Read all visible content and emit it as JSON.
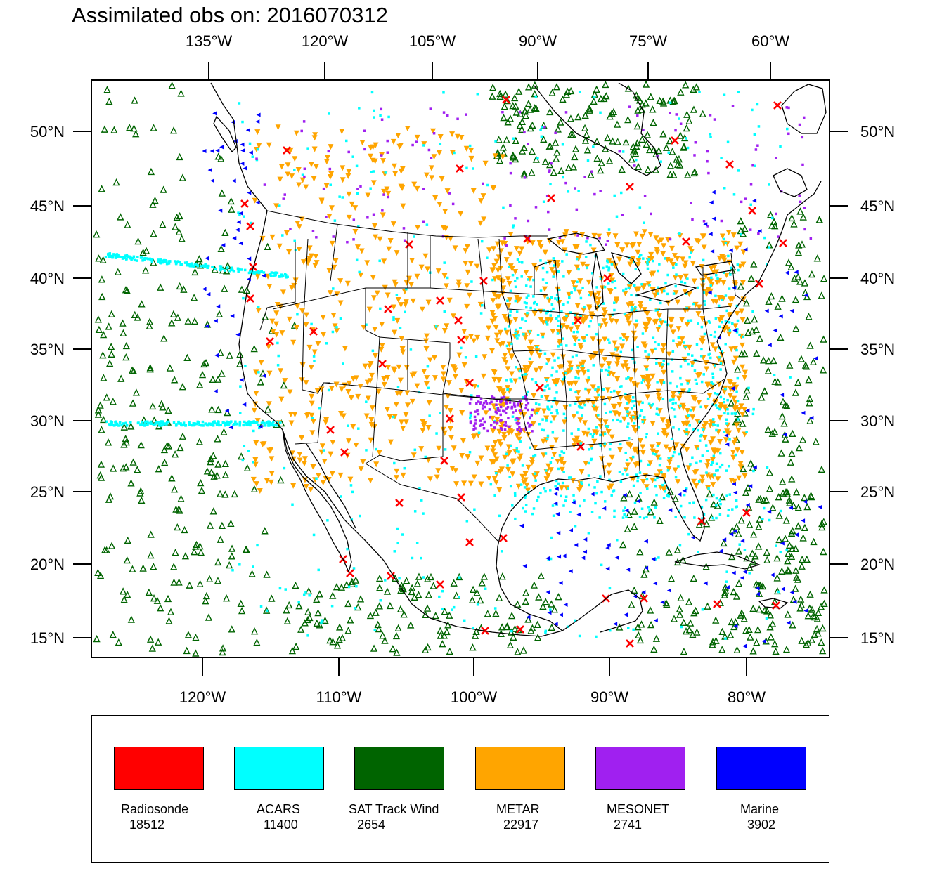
{
  "title": "Assimilated obs on: 2016070312",
  "top_lon_labels": [
    "135°W",
    "120°W",
    "105°W",
    "90°W",
    "75°W",
    "60°W"
  ],
  "bottom_lon_labels": [
    "120°W",
    "110°W",
    "100°W",
    "90°W",
    "80°W"
  ],
  "lat_labels": [
    "50°N",
    "45°N",
    "40°N",
    "35°N",
    "30°N",
    "25°N",
    "20°N",
    "15°N"
  ],
  "colors": {
    "radiosonde": "#ff0000",
    "acars": "#00ffff",
    "sat_track_wind": "#006400",
    "metar": "#ffa500",
    "mesonet": "#a020f0",
    "marine": "#0000ff"
  },
  "legend": [
    {
      "label": "Radiosonde",
      "count": "18512",
      "color": "#ff0000"
    },
    {
      "label": "ACARS",
      "count": "11400",
      "color": "#00ffff"
    },
    {
      "label": "SAT Track Wind",
      "count": "2654",
      "color": "#006400"
    },
    {
      "label": "METAR",
      "count": "22917",
      "color": "#ffa500"
    },
    {
      "label": "MESONET",
      "count": "2741",
      "color": "#a020f0"
    },
    {
      "label": "Marine",
      "count": "3902",
      "color": "#0000ff"
    }
  ]
}
